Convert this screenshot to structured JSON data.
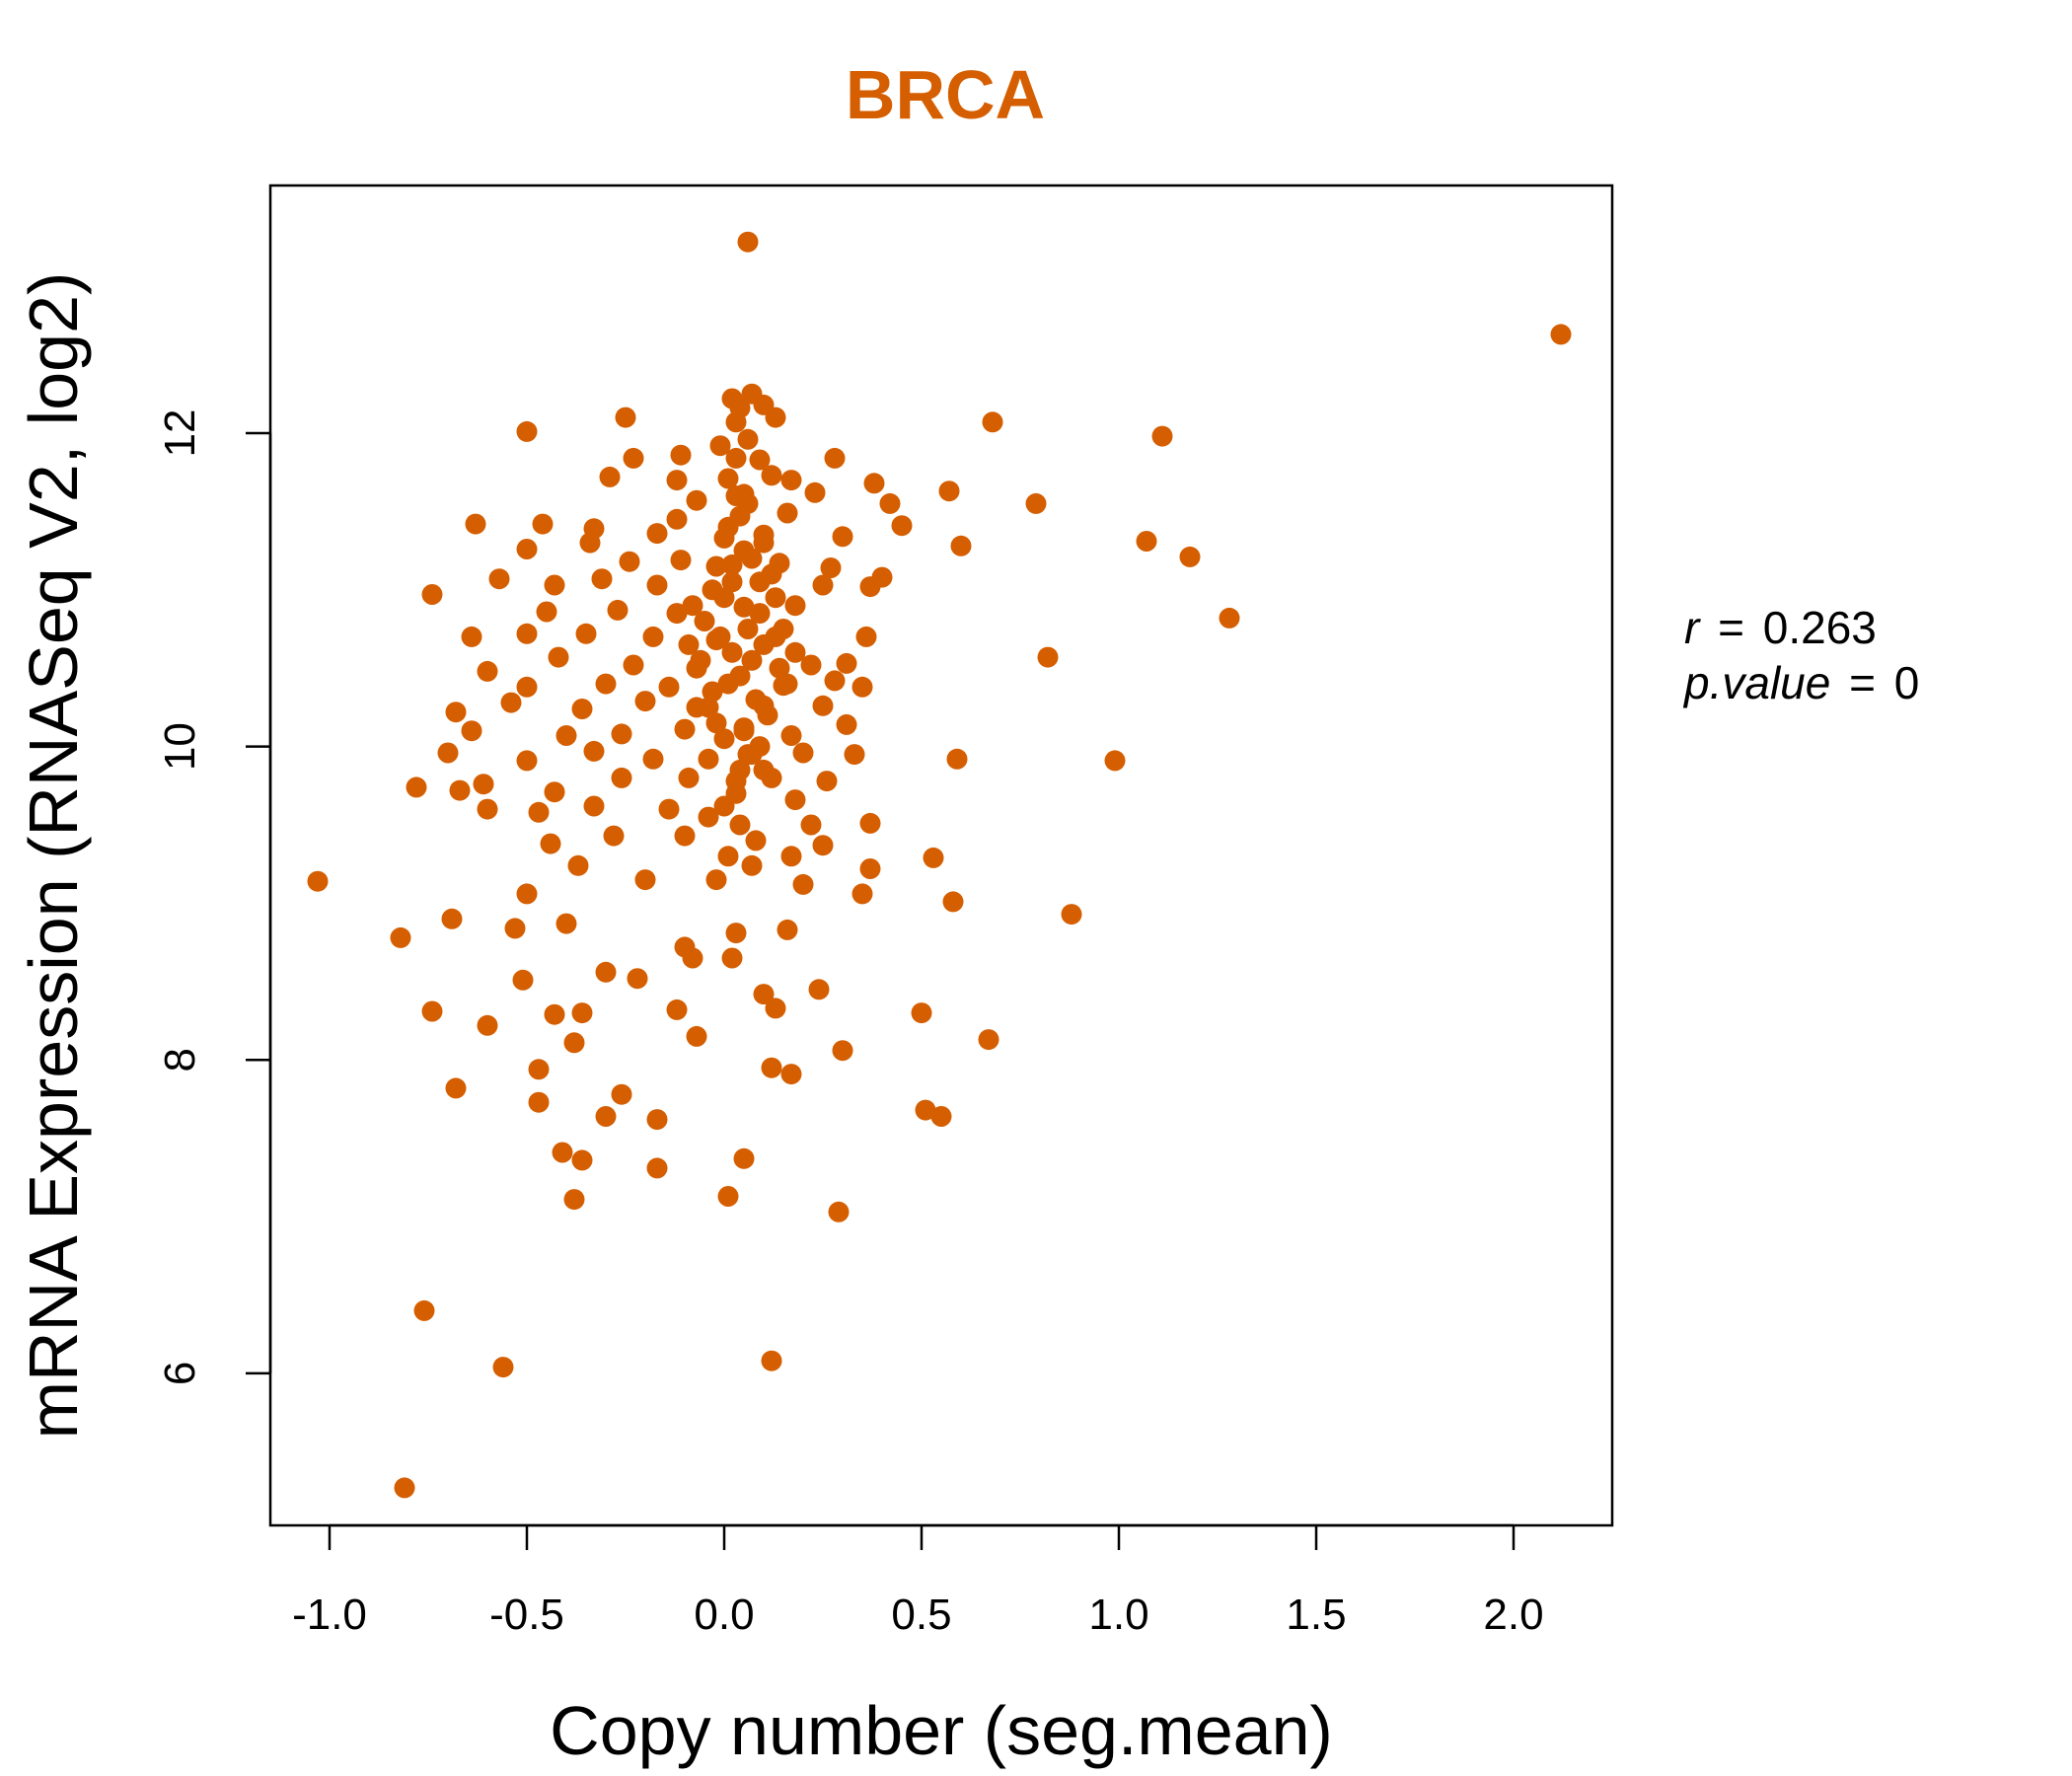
{
  "chart_data": {
    "type": "scatter",
    "title": "BRCA",
    "xlabel": "Copy number (seg.mean)",
    "ylabel": "mRNA Expression (RNASeq V2, log2)",
    "xlim": [
      -1.15,
      2.25
    ],
    "ylim": [
      5.03,
      13.58
    ],
    "x_ticks": [
      "-1.0",
      "-0.5",
      "0.0",
      "0.5",
      "1.0",
      "1.5",
      "2.0"
    ],
    "x_tick_values": [
      -1.0,
      -0.5,
      0.0,
      0.5,
      1.0,
      1.5,
      2.0
    ],
    "y_ticks": [
      "6",
      "8",
      "10",
      "12"
    ],
    "y_tick_values": [
      6,
      8,
      10,
      12
    ],
    "grid": false,
    "legend": "none",
    "annotations": {
      "r_label": "r",
      "r_value": "0.263",
      "p_label": "p.value",
      "p_value": "0"
    },
    "colors": {
      "points": "#D55E00",
      "title": "#D55E00",
      "axis": "#000000"
    },
    "series": [
      {
        "points": [
          [
            0.06,
            13.22
          ],
          [
            2.12,
            12.63
          ],
          [
            -1.03,
            9.14
          ],
          [
            -0.82,
            8.78
          ],
          [
            -0.81,
            5.27
          ],
          [
            -0.76,
            6.4
          ],
          [
            -0.56,
            6.04
          ],
          [
            0.12,
            6.08
          ],
          [
            0.29,
            7.03
          ],
          [
            0.01,
            7.13
          ],
          [
            -0.38,
            7.11
          ],
          [
            -0.17,
            7.31
          ],
          [
            0.05,
            7.37
          ],
          [
            -0.36,
            7.36
          ],
          [
            -0.41,
            7.41
          ],
          [
            0.51,
            7.68
          ],
          [
            0.55,
            7.64
          ],
          [
            -0.3,
            7.64
          ],
          [
            -0.26,
            7.78
          ],
          [
            -0.17,
            7.62
          ],
          [
            -0.47,
            7.73
          ],
          [
            -0.68,
            7.82
          ],
          [
            -0.47,
            7.94
          ],
          [
            0.12,
            7.95
          ],
          [
            0.17,
            7.91
          ],
          [
            0.3,
            8.06
          ],
          [
            -0.38,
            8.11
          ],
          [
            -0.6,
            8.22
          ],
          [
            0.67,
            8.13
          ],
          [
            0.5,
            8.3
          ],
          [
            -0.74,
            8.31
          ],
          [
            -0.43,
            8.29
          ],
          [
            -0.36,
            8.3
          ],
          [
            0.24,
            8.45
          ],
          [
            -0.12,
            8.32
          ],
          [
            -0.07,
            8.15
          ],
          [
            0.1,
            8.42
          ],
          [
            0.13,
            8.33
          ],
          [
            -0.51,
            8.51
          ],
          [
            -0.3,
            8.56
          ],
          [
            -0.08,
            8.65
          ],
          [
            0.02,
            8.65
          ],
          [
            -0.53,
            8.84
          ],
          [
            -0.4,
            8.87
          ],
          [
            -0.69,
            8.9
          ],
          [
            -0.22,
            8.52
          ],
          [
            -0.1,
            8.72
          ],
          [
            0.16,
            8.83
          ],
          [
            0.03,
            8.81
          ],
          [
            0.88,
            8.93
          ],
          [
            0.58,
            9.01
          ],
          [
            0.53,
            9.29
          ],
          [
            0.35,
            9.06
          ],
          [
            0.37,
            9.22
          ],
          [
            0.2,
            9.12
          ],
          [
            -0.5,
            9.06
          ],
          [
            -0.37,
            9.24
          ],
          [
            -0.2,
            9.15
          ],
          [
            -0.02,
            9.15
          ],
          [
            0.07,
            9.24
          ],
          [
            0.17,
            9.3
          ],
          [
            0.25,
            9.37
          ],
          [
            -0.44,
            9.38
          ],
          [
            -0.28,
            9.43
          ],
          [
            -0.1,
            9.43
          ],
          [
            0.04,
            9.5
          ],
          [
            0.22,
            9.5
          ],
          [
            0.37,
            9.51
          ],
          [
            -0.6,
            9.6
          ],
          [
            -0.47,
            9.58
          ],
          [
            -0.33,
            9.62
          ],
          [
            -0.14,
            9.6
          ],
          [
            0.0,
            9.62
          ],
          [
            0.18,
            9.66
          ],
          [
            -0.78,
            9.74
          ],
          [
            -0.67,
            9.72
          ],
          [
            -0.61,
            9.76
          ],
          [
            -0.43,
            9.71
          ],
          [
            -0.26,
            9.8
          ],
          [
            -0.09,
            9.8
          ],
          [
            0.03,
            9.78
          ],
          [
            0.1,
            9.85
          ],
          [
            0.26,
            9.78
          ],
          [
            0.99,
            9.91
          ],
          [
            0.59,
            9.92
          ],
          [
            -0.7,
            9.96
          ],
          [
            -0.5,
            9.91
          ],
          [
            -0.33,
            9.97
          ],
          [
            -0.18,
            9.92
          ],
          [
            -0.04,
            9.92
          ],
          [
            0.06,
            9.95
          ],
          [
            0.2,
            9.96
          ],
          [
            0.33,
            9.95
          ],
          [
            -0.64,
            10.1
          ],
          [
            -0.4,
            10.07
          ],
          [
            -0.26,
            10.08
          ],
          [
            -0.1,
            10.11
          ],
          [
            0.05,
            10.12
          ],
          [
            0.17,
            10.07
          ],
          [
            0.31,
            10.14
          ],
          [
            -0.68,
            10.22
          ],
          [
            -0.54,
            10.28
          ],
          [
            -0.36,
            10.24
          ],
          [
            -0.2,
            10.29
          ],
          [
            -0.04,
            10.25
          ],
          [
            0.1,
            10.26
          ],
          [
            0.25,
            10.26
          ],
          [
            0.35,
            10.38
          ],
          [
            -0.5,
            10.38
          ],
          [
            -0.3,
            10.4
          ],
          [
            -0.14,
            10.38
          ],
          [
            0.01,
            10.4
          ],
          [
            0.15,
            10.39
          ],
          [
            0.28,
            10.42
          ],
          [
            -0.6,
            10.48
          ],
          [
            -0.42,
            10.57
          ],
          [
            -0.23,
            10.52
          ],
          [
            -0.07,
            10.5
          ],
          [
            0.07,
            10.55
          ],
          [
            0.22,
            10.52
          ],
          [
            0.82,
            10.57
          ],
          [
            0.31,
            10.53
          ],
          [
            -0.64,
            10.7
          ],
          [
            -0.5,
            10.72
          ],
          [
            -0.35,
            10.72
          ],
          [
            -0.18,
            10.7
          ],
          [
            -0.02,
            10.68
          ],
          [
            0.13,
            10.7
          ],
          [
            0.36,
            10.7
          ],
          [
            1.28,
            10.82
          ],
          [
            -0.45,
            10.86
          ],
          [
            -0.27,
            10.87
          ],
          [
            -0.12,
            10.85
          ],
          [
            0.05,
            10.89
          ],
          [
            0.18,
            10.9
          ],
          [
            0.4,
            11.08
          ],
          [
            -0.74,
            10.97
          ],
          [
            -0.57,
            11.07
          ],
          [
            -0.43,
            11.03
          ],
          [
            -0.31,
            11.07
          ],
          [
            -0.17,
            11.03
          ],
          [
            -0.03,
            11.0
          ],
          [
            0.09,
            11.05
          ],
          [
            0.25,
            11.03
          ],
          [
            0.37,
            11.02
          ],
          [
            -0.24,
            11.18
          ],
          [
            -0.11,
            11.19
          ],
          [
            0.02,
            11.16
          ],
          [
            0.14,
            11.17
          ],
          [
            0.27,
            11.14
          ],
          [
            1.07,
            11.31
          ],
          [
            1.18,
            11.21
          ],
          [
            0.6,
            11.28
          ],
          [
            -0.5,
            11.26
          ],
          [
            -0.34,
            11.3
          ],
          [
            -0.17,
            11.36
          ],
          [
            0.0,
            11.33
          ],
          [
            0.1,
            11.3
          ],
          [
            0.3,
            11.34
          ],
          [
            0.45,
            11.41
          ],
          [
            -0.63,
            11.42
          ],
          [
            -0.46,
            11.42
          ],
          [
            -0.33,
            11.39
          ],
          [
            -0.12,
            11.45
          ],
          [
            0.04,
            11.47
          ],
          [
            0.16,
            11.49
          ],
          [
            0.42,
            11.55
          ],
          [
            0.79,
            11.55
          ],
          [
            -0.07,
            11.57
          ],
          [
            0.05,
            11.61
          ],
          [
            0.23,
            11.62
          ],
          [
            0.57,
            11.63
          ],
          [
            0.38,
            11.68
          ],
          [
            -0.29,
            11.72
          ],
          [
            -0.12,
            11.7
          ],
          [
            0.01,
            11.71
          ],
          [
            0.12,
            11.73
          ],
          [
            0.17,
            11.7
          ],
          [
            -0.23,
            11.84
          ],
          [
            -0.11,
            11.86
          ],
          [
            0.03,
            11.84
          ],
          [
            0.09,
            11.83
          ],
          [
            0.28,
            11.84
          ],
          [
            1.11,
            11.98
          ],
          [
            -0.5,
            12.01
          ],
          [
            -0.01,
            11.92
          ],
          [
            0.06,
            11.96
          ],
          [
            0.68,
            12.07
          ],
          [
            -0.25,
            12.1
          ],
          [
            0.03,
            12.07
          ],
          [
            0.13,
            12.1
          ],
          [
            0.02,
            12.22
          ],
          [
            0.07,
            12.25
          ],
          [
            0.1,
            12.18
          ],
          [
            0.04,
            12.16
          ],
          [
            0.02,
            10.6
          ],
          [
            0.04,
            10.45
          ],
          [
            0.06,
            10.75
          ],
          [
            0.08,
            10.3
          ],
          [
            0.0,
            10.95
          ],
          [
            -0.02,
            10.15
          ],
          [
            0.1,
            10.65
          ],
          [
            0.12,
            11.1
          ],
          [
            -0.05,
            10.8
          ],
          [
            0.05,
            11.25
          ],
          [
            0.07,
            9.95
          ],
          [
            -0.03,
            10.35
          ],
          [
            0.09,
            10.85
          ],
          [
            0.11,
            10.2
          ],
          [
            0.01,
            11.4
          ],
          [
            0.03,
            9.7
          ],
          [
            -0.06,
            10.55
          ],
          [
            0.14,
            10.5
          ],
          [
            0.06,
            11.55
          ],
          [
            0.0,
            10.05
          ],
          [
            -0.08,
            10.9
          ],
          [
            0.13,
            10.95
          ],
          [
            0.15,
            10.75
          ],
          [
            -0.04,
            9.55
          ],
          [
            0.02,
            11.05
          ],
          [
            0.08,
            9.4
          ],
          [
            -0.01,
            10.7
          ],
          [
            0.05,
            10.1
          ],
          [
            0.1,
            11.35
          ],
          [
            0.04,
            9.85
          ],
          [
            -0.07,
            10.25
          ],
          [
            0.16,
            10.4
          ],
          [
            0.07,
            11.2
          ],
          [
            -0.02,
            11.15
          ],
          [
            0.12,
            9.8
          ],
          [
            0.01,
            9.3
          ],
          [
            0.09,
            10.0
          ],
          [
            -0.09,
            10.65
          ],
          [
            0.18,
            10.6
          ],
          [
            0.03,
            11.6
          ]
        ]
      }
    ]
  }
}
